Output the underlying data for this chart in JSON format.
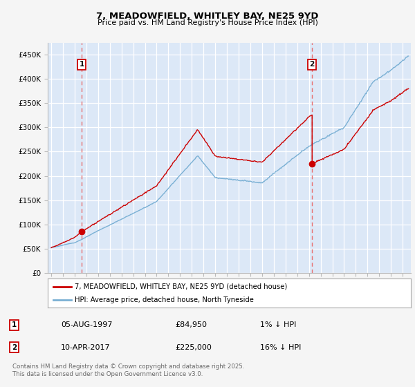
{
  "title_line1": "7, MEADOWFIELD, WHITLEY BAY, NE25 9YD",
  "title_line2": "Price paid vs. HM Land Registry's House Price Index (HPI)",
  "ylabel_ticks": [
    "£0",
    "£50K",
    "£100K",
    "£150K",
    "£200K",
    "£250K",
    "£300K",
    "£350K",
    "£400K",
    "£450K"
  ],
  "ytick_values": [
    0,
    50000,
    100000,
    150000,
    200000,
    250000,
    300000,
    350000,
    400000,
    450000
  ],
  "xlim_years": [
    1994.7,
    2025.7
  ],
  "ylim": [
    0,
    475000
  ],
  "plot_bg_color": "#dce8f7",
  "fig_bg_color": "#f0f0f0",
  "grid_color": "#ffffff",
  "hpi_line_color": "#7ab0d4",
  "property_line_color": "#cc0000",
  "dashed_line_color": "#e87070",
  "marker1_year": 1997.59,
  "marker1_price": 84950,
  "marker2_year": 2017.27,
  "marker2_price": 225000,
  "legend_property": "7, MEADOWFIELD, WHITLEY BAY, NE25 9YD (detached house)",
  "legend_hpi": "HPI: Average price, detached house, North Tyneside",
  "table_row1": [
    "1",
    "05-AUG-1997",
    "£84,950",
    "1% ↓ HPI"
  ],
  "table_row2": [
    "2",
    "10-APR-2017",
    "£225,000",
    "16% ↓ HPI"
  ],
  "footer": "Contains HM Land Registry data © Crown copyright and database right 2025.\nThis data is licensed under the Open Government Licence v3.0."
}
